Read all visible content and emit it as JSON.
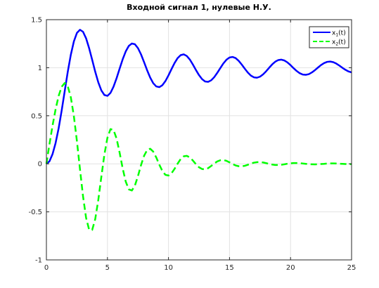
{
  "chart_data": {
    "type": "line",
    "title": "Входной сигнал 1, нулевые Н.У.",
    "xlabel": "",
    "ylabel": "",
    "xlim": [
      0,
      25
    ],
    "ylim": [
      -1,
      1.5
    ],
    "grid": true,
    "legend_position": "top-right",
    "x_ticks": [
      0,
      5,
      10,
      15,
      20,
      25
    ],
    "y_ticks": [
      -1,
      -0.5,
      0,
      0.5,
      1,
      1.5
    ],
    "x_tick_labels": [
      "0",
      "5",
      "10",
      "15",
      "20",
      "25"
    ],
    "y_tick_labels": [
      "-1",
      "-0.5",
      "0",
      "0.5",
      "1",
      "1.5"
    ],
    "series": [
      {
        "name": "x1(t)",
        "color": "#0000ff",
        "line_style": "solid",
        "x": [
          0,
          0.25,
          0.5,
          0.75,
          1.0,
          1.25,
          1.5,
          1.75,
          2.0,
          2.25,
          2.5,
          2.75,
          3.0,
          3.25,
          3.5,
          3.75,
          4.0,
          4.25,
          4.5,
          4.75,
          5.0,
          5.25,
          5.5,
          5.75,
          6.0,
          6.25,
          6.5,
          6.75,
          7.0,
          7.25,
          7.5,
          7.75,
          8.0,
          8.25,
          8.5,
          8.75,
          9.0,
          9.25,
          9.5,
          9.75,
          10.0,
          10.25,
          10.5,
          10.75,
          11.0,
          11.25,
          11.5,
          11.75,
          12.0,
          12.25,
          12.5,
          12.75,
          13.0,
          13.25,
          13.5,
          13.75,
          14.0,
          14.25,
          14.5,
          14.75,
          15.0,
          15.25,
          15.5,
          15.75,
          16.0,
          16.25,
          16.5,
          16.75,
          17.0,
          17.25,
          17.5,
          17.75,
          18.0,
          18.25,
          18.5,
          18.75,
          19.0,
          19.25,
          19.5,
          19.75,
          20.0,
          20.25,
          20.5,
          20.75,
          21.0,
          21.25,
          21.5,
          21.75,
          22.0,
          22.25,
          22.5,
          22.75,
          23.0,
          23.25,
          23.5,
          23.75,
          24.0,
          24.25,
          24.5,
          24.75,
          25.0
        ],
        "y": [
          0,
          0.026,
          0.1,
          0.215,
          0.368,
          0.554,
          0.757,
          0.958,
          1.135,
          1.274,
          1.362,
          1.395,
          1.374,
          1.306,
          1.203,
          1.082,
          0.958,
          0.848,
          0.764,
          0.716,
          0.707,
          0.738,
          0.803,
          0.891,
          0.991,
          1.088,
          1.17,
          1.227,
          1.252,
          1.244,
          1.204,
          1.139,
          1.058,
          0.974,
          0.898,
          0.839,
          0.805,
          0.798,
          0.818,
          0.861,
          0.92,
          0.986,
          1.049,
          1.1,
          1.131,
          1.139,
          1.122,
          1.085,
          1.033,
          0.976,
          0.923,
          0.881,
          0.857,
          0.853,
          0.869,
          0.902,
          0.947,
          0.997,
          1.045,
          1.083,
          1.106,
          1.112,
          1.1,
          1.072,
          1.033,
          0.99,
          0.95,
          0.918,
          0.9,
          0.896,
          0.907,
          0.931,
          0.963,
          1.0,
          1.035,
          1.063,
          1.08,
          1.084,
          1.075,
          1.055,
          1.027,
          0.995,
          0.966,
          0.943,
          0.929,
          0.926,
          0.933,
          0.951,
          0.975,
          1.002,
          1.028,
          1.048,
          1.061,
          1.064,
          1.058,
          1.043,
          1.022,
          0.999,
          0.978,
          0.961,
          0.951
        ]
      },
      {
        "name": "x2(t)",
        "color": "#00ff00",
        "line_style": "dashed",
        "x": [
          0,
          0.25,
          0.5,
          0.75,
          1.0,
          1.25,
          1.5,
          1.75,
          2.0,
          2.25,
          2.5,
          2.75,
          3.0,
          3.25,
          3.5,
          3.75,
          4.0,
          4.25,
          4.5,
          4.75,
          5.0,
          5.25,
          5.5,
          5.75,
          6.0,
          6.25,
          6.5,
          6.75,
          7.0,
          7.25,
          7.5,
          7.75,
          8.0,
          8.25,
          8.5,
          8.75,
          9.0,
          9.25,
          9.5,
          9.75,
          10.0,
          10.25,
          10.5,
          10.75,
          11.0,
          11.25,
          11.5,
          11.75,
          12.0,
          12.25,
          12.5,
          12.75,
          13.0,
          13.25,
          13.5,
          13.75,
          14.0,
          14.25,
          14.5,
          14.75,
          15.0,
          15.25,
          15.5,
          15.75,
          16.0,
          16.25,
          16.5,
          16.75,
          17.0,
          17.25,
          17.5,
          17.75,
          18.0,
          18.25,
          18.5,
          18.75,
          19.0,
          19.25,
          19.5,
          19.75,
          20.0,
          20.25,
          20.5,
          20.75,
          21.0,
          21.25,
          21.5,
          21.75,
          22.0,
          22.25,
          22.5,
          22.75,
          23.0,
          23.25,
          23.5,
          23.75,
          24.0,
          24.25,
          24.5,
          24.75,
          25.0
        ],
        "y": [
          0,
          0.204,
          0.396,
          0.565,
          0.706,
          0.802,
          0.841,
          0.807,
          0.692,
          0.496,
          0.236,
          -0.056,
          -0.338,
          -0.562,
          -0.686,
          -0.688,
          -0.575,
          -0.376,
          -0.135,
          0.096,
          0.272,
          0.361,
          0.352,
          0.262,
          0.115,
          -0.049,
          -0.186,
          -0.266,
          -0.278,
          -0.226,
          -0.128,
          -0.014,
          0.083,
          0.143,
          0.157,
          0.127,
          0.066,
          -0.009,
          -0.075,
          -0.115,
          -0.122,
          -0.098,
          -0.052,
          0.002,
          0.05,
          0.078,
          0.083,
          0.066,
          0.034,
          -0.004,
          -0.036,
          -0.054,
          -0.057,
          -0.045,
          -0.022,
          0.003,
          0.025,
          0.037,
          0.039,
          0.031,
          0.015,
          -0.002,
          -0.017,
          -0.025,
          -0.026,
          -0.021,
          -0.01,
          0.002,
          0.012,
          0.017,
          0.018,
          0.014,
          0.007,
          -0.001,
          -0.008,
          -0.012,
          -0.012,
          -0.01,
          -0.005,
          0.001,
          0.005,
          0.008,
          0.008,
          0.007,
          0.003,
          0,
          -0.004,
          -0.005,
          -0.006,
          -0.004,
          -0.002,
          0,
          0.003,
          0.004,
          0.004,
          0.003,
          0.001,
          0,
          -0.002,
          -0.003,
          -0.003
        ]
      }
    ]
  },
  "legend": {
    "entries": [
      {
        "main": "x",
        "sub": "1",
        "suffix": "(t)"
      },
      {
        "main": "x",
        "sub": "2",
        "suffix": "(t)"
      }
    ]
  }
}
